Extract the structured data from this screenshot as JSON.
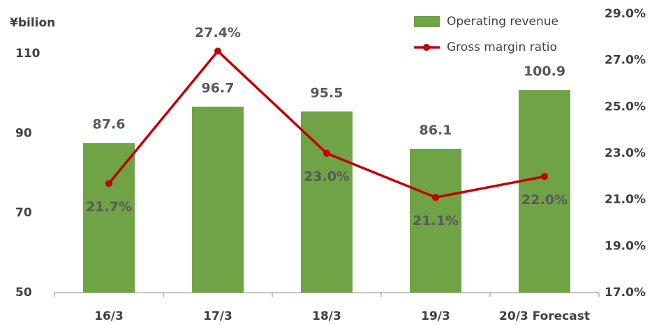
{
  "chart_data": {
    "type": "bar",
    "y_label": "¥bilion",
    "categories": [
      "16/3",
      "17/3",
      "18/3",
      "19/3",
      "20/3 Forecast"
    ],
    "series": [
      {
        "name": "Operating revenue",
        "type": "bar",
        "color": "#70a246",
        "values": [
          87.6,
          96.7,
          95.5,
          86.1,
          100.9
        ]
      },
      {
        "name": "Gross margin ratio",
        "type": "line",
        "axis": "y2",
        "color": "#c00000",
        "values": [
          21.7,
          27.4,
          23.0,
          21.1,
          22.0
        ],
        "value_labels": [
          "21.7%",
          "27.4%",
          "23.0%",
          "21.1%",
          "22.0%"
        ]
      }
    ],
    "ylim": [
      50,
      120
    ],
    "yticks": [
      50,
      70,
      90,
      110
    ],
    "y2lim": [
      17,
      29
    ],
    "y2ticks": [
      {
        "value": 17,
        "label": "17.0%"
      },
      {
        "value": 19,
        "label": "19.0%"
      },
      {
        "value": 21,
        "label": "21.0%"
      },
      {
        "value": 23,
        "label": "23.0%"
      },
      {
        "value": 25,
        "label": "25.0%"
      },
      {
        "value": 27,
        "label": "27.0%"
      },
      {
        "value": 29,
        "label": "29.0%"
      }
    ],
    "grid": false,
    "legend": "top-right"
  }
}
